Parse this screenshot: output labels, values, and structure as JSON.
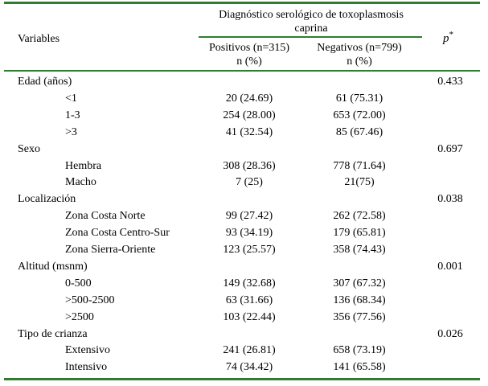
{
  "header": {
    "variables_label": "Variables",
    "group_title_line1": "Diagnóstico serológico de toxoplasmosis",
    "group_title_line2": "caprina",
    "positivos_label": "Positivos (n=315)",
    "negativos_label": "Negativos (n=799)",
    "unit_pos": "n (%)",
    "unit_neg": "n (%)",
    "p_label": "p",
    "p_sup": "*"
  },
  "colors": {
    "rule": "#2e7d32"
  },
  "rows": [
    {
      "label": "Edad (años)",
      "pos": "",
      "neg": "",
      "p": "0.433",
      "indent": false
    },
    {
      "label": "<1",
      "pos": "20 (24.69)",
      "neg": "61 (75.31)",
      "p": "",
      "indent": true
    },
    {
      "label": "1-3",
      "pos": "254 (28.00)",
      "neg": "653 (72.00)",
      "p": "",
      "indent": true
    },
    {
      "label": ">3",
      "pos": "41 (32.54)",
      "neg": "85 (67.46)",
      "p": "",
      "indent": true
    },
    {
      "label": "Sexo",
      "pos": "",
      "neg": "",
      "p": "0.697",
      "indent": false
    },
    {
      "label": "Hembra",
      "pos": "308 (28.36)",
      "neg": "778 (71.64)",
      "p": "",
      "indent": true
    },
    {
      "label": "Macho",
      "pos": "7 (25)",
      "neg": "21(75)",
      "p": "",
      "indent": true
    },
    {
      "label": "Localización",
      "pos": "",
      "neg": "",
      "p": "0.038",
      "indent": false
    },
    {
      "label": "Zona Costa Norte",
      "pos": "99 (27.42)",
      "neg": "262 (72.58)",
      "p": "",
      "indent": true
    },
    {
      "label": "Zona Costa Centro-Sur",
      "pos": "93 (34.19)",
      "neg": "179 (65.81)",
      "p": "",
      "indent": true
    },
    {
      "label": "Zona Sierra-Oriente",
      "pos": "123 (25.57)",
      "neg": "358 (74.43)",
      "p": "",
      "indent": true
    },
    {
      "label": "Altitud (msnm)",
      "pos": "",
      "neg": "",
      "p": "0.001",
      "indent": false
    },
    {
      "label": "0-500",
      "pos": "149 (32.68)",
      "neg": "307 (67.32)",
      "p": "",
      "indent": true
    },
    {
      "label": ">500-2500",
      "pos": "63 (31.66)",
      "neg": "136 (68.34)",
      "p": "",
      "indent": true
    },
    {
      "label": ">2500",
      "pos": "103 (22.44)",
      "neg": "356 (77.56)",
      "p": "",
      "indent": true
    },
    {
      "label": "Tipo de crianza",
      "pos": "",
      "neg": "",
      "p": "0.026",
      "indent": false
    },
    {
      "label": "Extensivo",
      "pos": "241 (26.81)",
      "neg": "658 (73.19)",
      "p": "",
      "indent": true
    },
    {
      "label": "Intensivo",
      "pos": "74 (34.42)",
      "neg": "141 (65.58)",
      "p": "",
      "indent": true
    }
  ]
}
